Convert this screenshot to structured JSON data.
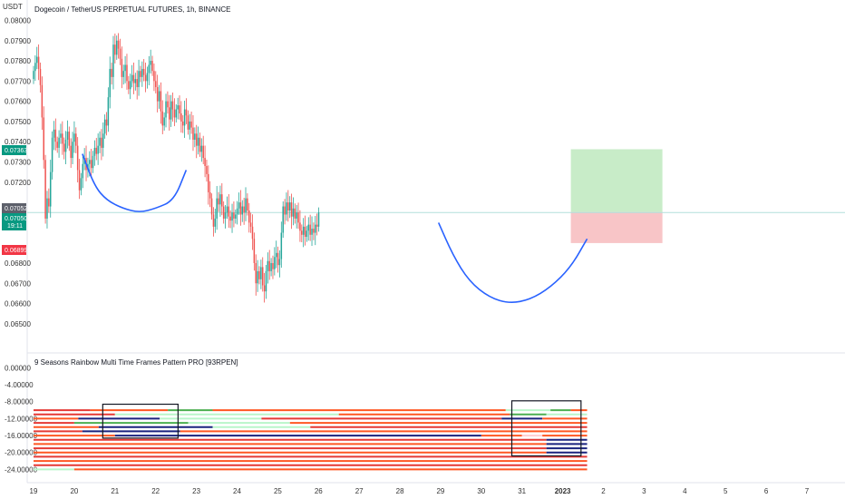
{
  "header": {
    "unit": "USDT",
    "title": "Dogecoin / TetherUS PERPETUAL FUTURES, 1h, BINANCE"
  },
  "indicator": {
    "title": "9 Seasons Rainbow Multi Time Frames Pattern PRO [93RPEN]"
  },
  "colors": {
    "bull": "#26a69a",
    "bear": "#ef5350",
    "curve": "#2962ff",
    "target_fill": "#c8ecc8",
    "stop_fill": "#f8c5c7",
    "price_tag": "#089981",
    "stop_tag": "#f23645",
    "entry_tag": "#5d606b",
    "box": "#131722",
    "rb_orange": "#ff5722",
    "rb_red": "#e53935",
    "rb_navy": "#1a237e",
    "rb_lightgreen": "#b9f6ca",
    "rb_teal": "#4caf50",
    "rb_pink": "#ffcdd2"
  },
  "price_tags": {
    "target": "0.07363",
    "entry": "0.07052",
    "current": "0.07050",
    "countdown": "19:11",
    "stop": "0.06899"
  },
  "chart_data": [
    {
      "type": "candlestick",
      "title": "Dogecoin / TetherUS PERPETUAL FUTURES, 1h, BINANCE",
      "ylabel": "USDT",
      "ylim": [
        0.0645,
        0.0802
      ],
      "y_ticks": [
        "0.06500",
        "0.06600",
        "0.06700",
        "0.06800",
        "0.07200",
        "0.07300",
        "0.07400",
        "0.07500",
        "0.07600",
        "0.07700",
        "0.07800",
        "0.07900",
        "0.08000"
      ],
      "x_ticks": [
        "19",
        "20",
        "21",
        "22",
        "23",
        "24",
        "25",
        "26",
        "27",
        "28",
        "29",
        "30",
        "31",
        "2023",
        "2",
        "3",
        "4",
        "5",
        "6",
        "7"
      ],
      "x_positions": [
        19,
        20,
        21,
        22,
        23,
        24,
        25,
        26,
        27,
        28,
        29,
        30,
        31,
        32,
        33,
        34,
        35,
        36,
        37,
        38
      ],
      "grid": false,
      "series": [
        {
          "kind": "candles_close",
          "x_start": 19.0,
          "x_step": 0.0417,
          "close": [
            0.0775,
            0.0779,
            0.0782,
            0.0776,
            0.0768,
            0.0752,
            0.0731,
            0.0702,
            0.0712,
            0.0708,
            0.0725,
            0.0742,
            0.0746,
            0.074,
            0.0737,
            0.0742,
            0.0744,
            0.0739,
            0.0735,
            0.0741,
            0.0745,
            0.0738,
            0.0732,
            0.074,
            0.0744,
            0.0738,
            0.0726,
            0.0716,
            0.0722,
            0.0729,
            0.0732,
            0.0726,
            0.0729,
            0.0731,
            0.0727,
            0.0733,
            0.0737,
            0.0734,
            0.0738,
            0.0742,
            0.0737,
            0.0744,
            0.0751,
            0.0748,
            0.0762,
            0.0776,
            0.0772,
            0.0788,
            0.0783,
            0.079,
            0.0786,
            0.0781,
            0.0772,
            0.0775,
            0.0778,
            0.077,
            0.0766,
            0.077,
            0.0773,
            0.0769,
            0.0771,
            0.0767,
            0.0775,
            0.0772,
            0.0776,
            0.0773,
            0.077,
            0.0774,
            0.0778,
            0.078,
            0.0775,
            0.077,
            0.0767,
            0.076,
            0.0765,
            0.0755,
            0.0748,
            0.0752,
            0.076,
            0.0757,
            0.0751,
            0.076,
            0.0756,
            0.0752,
            0.0756,
            0.0758,
            0.0754,
            0.075,
            0.0748,
            0.0756,
            0.0753,
            0.0746,
            0.075,
            0.0747,
            0.0741,
            0.0744,
            0.0738,
            0.0742,
            0.0735,
            0.0738,
            0.0732,
            0.0728,
            0.0724,
            0.0715,
            0.0712,
            0.0704,
            0.0698,
            0.0702,
            0.0712,
            0.0709,
            0.0714,
            0.0708,
            0.0702,
            0.0705,
            0.0708,
            0.0703,
            0.0701,
            0.0705,
            0.0702,
            0.0704,
            0.0707,
            0.071,
            0.0704,
            0.0708,
            0.0705,
            0.0712,
            0.0706,
            0.07,
            0.0698,
            0.0692,
            0.068,
            0.067,
            0.0676,
            0.0672,
            0.0678,
            0.0669,
            0.0666,
            0.0676,
            0.0681,
            0.0676,
            0.068,
            0.0677,
            0.0683,
            0.0685,
            0.0679,
            0.0682,
            0.0695,
            0.0708,
            0.0704,
            0.071,
            0.0706,
            0.071,
            0.0703,
            0.0707,
            0.0702,
            0.0705,
            0.07,
            0.0696,
            0.0694,
            0.0698,
            0.0693,
            0.0696,
            0.0699,
            0.0694,
            0.0697,
            0.0695,
            0.0699,
            0.0698,
            0.0705
          ]
        },
        {
          "name": "",
          "kind": "curve",
          "x": [
            20.2,
            20.5,
            20.8,
            21.2,
            21.6,
            22.0,
            22.45,
            22.75
          ],
          "y": [
            0.0734,
            0.0718,
            0.0711,
            0.0707,
            0.0705,
            0.0707,
            0.0711,
            0.0726
          ]
        },
        {
          "name": "",
          "kind": "curve",
          "x": [
            28.95,
            29.3,
            29.7,
            30.2,
            30.7,
            31.2,
            31.7,
            32.2,
            32.6
          ],
          "y": [
            0.07,
            0.0684,
            0.0671,
            0.0663,
            0.066,
            0.0662,
            0.0668,
            0.0678,
            0.0692
          ]
        }
      ],
      "position_tool": {
        "x_range": [
          32.2,
          34.45
        ],
        "entry": 0.07052,
        "target": 0.07363,
        "stop": 0.06899
      },
      "reference_line": 0.0705
    },
    {
      "type": "heatmap",
      "title": "9 Seasons Rainbow Multi Time Frames Pattern PRO [93RPEN]",
      "ylim": [
        -25.2,
        0.3
      ],
      "y_ticks": [
        "0.00000",
        "-4.00000",
        "-8.00000",
        "-12.00000",
        "-16.00000",
        "-20.00000",
        "-24.00000"
      ],
      "y_tick_values": [
        0,
        -4,
        -8,
        -12,
        -16,
        -20,
        -24
      ],
      "rows": [
        {
          "y": -10,
          "segments": [
            {
              "x0": 19.0,
              "x1": 20.4,
              "color": "rb_red"
            },
            {
              "x0": 20.4,
              "x1": 22.3,
              "color": "rb_orange"
            },
            {
              "x0": 22.3,
              "x1": 23.4,
              "color": "rb_teal"
            },
            {
              "x0": 23.4,
              "x1": 30.6,
              "color": "rb_orange"
            },
            {
              "x0": 30.6,
              "x1": 31.7,
              "color": "rb_lightgreen"
            },
            {
              "x0": 31.7,
              "x1": 32.2,
              "color": "rb_teal"
            },
            {
              "x0": 32.2,
              "x1": 32.6,
              "color": "rb_orange"
            }
          ]
        },
        {
          "y": -11,
          "segments": [
            {
              "x0": 19.0,
              "x1": 21.0,
              "color": "rb_red"
            },
            {
              "x0": 21.0,
              "x1": 22.5,
              "color": "rb_lightgreen"
            },
            {
              "x0": 22.5,
              "x1": 26.5,
              "color": "rb_lightgreen"
            },
            {
              "x0": 26.5,
              "x1": 30.7,
              "color": "rb_orange"
            },
            {
              "x0": 30.7,
              "x1": 31.6,
              "color": "rb_teal"
            },
            {
              "x0": 31.6,
              "x1": 32.6,
              "color": "rb_lightgreen"
            }
          ]
        },
        {
          "y": -12,
          "segments": [
            {
              "x0": 19.0,
              "x1": 20.1,
              "color": "rb_orange"
            },
            {
              "x0": 20.1,
              "x1": 22.1,
              "color": "rb_navy"
            },
            {
              "x0": 22.1,
              "x1": 24.6,
              "color": "rb_lightgreen"
            },
            {
              "x0": 24.6,
              "x1": 30.5,
              "color": "rb_red"
            },
            {
              "x0": 30.5,
              "x1": 31.5,
              "color": "rb_navy"
            },
            {
              "x0": 31.5,
              "x1": 32.6,
              "color": "rb_orange"
            }
          ]
        },
        {
          "y": -13,
          "segments": [
            {
              "x0": 19.0,
              "x1": 20.0,
              "color": "rb_red"
            },
            {
              "x0": 20.0,
              "x1": 22.8,
              "color": "rb_teal"
            },
            {
              "x0": 22.8,
              "x1": 25.3,
              "color": "rb_lightgreen"
            },
            {
              "x0": 25.3,
              "x1": 32.6,
              "color": "rb_orange"
            }
          ]
        },
        {
          "y": -14,
          "segments": [
            {
              "x0": 19.0,
              "x1": 20.6,
              "color": "rb_orange"
            },
            {
              "x0": 20.6,
              "x1": 23.4,
              "color": "rb_navy"
            },
            {
              "x0": 23.4,
              "x1": 25.8,
              "color": "rb_lightgreen"
            },
            {
              "x0": 25.8,
              "x1": 32.6,
              "color": "rb_red"
            }
          ]
        },
        {
          "y": -15,
          "segments": [
            {
              "x0": 19.0,
              "x1": 20.2,
              "color": "rb_red"
            },
            {
              "x0": 20.2,
              "x1": 22.6,
              "color": "rb_navy"
            },
            {
              "x0": 22.6,
              "x1": 32.6,
              "color": "rb_orange"
            }
          ]
        },
        {
          "y": -16,
          "segments": [
            {
              "x0": 19.0,
              "x1": 21.0,
              "color": "rb_orange"
            },
            {
              "x0": 21.0,
              "x1": 30.0,
              "color": "rb_navy"
            },
            {
              "x0": 30.0,
              "x1": 31.0,
              "color": "rb_orange"
            },
            {
              "x0": 31.0,
              "x1": 31.5,
              "color": "rb_pink"
            },
            {
              "x0": 31.5,
              "x1": 32.6,
              "color": "rb_orange"
            }
          ]
        },
        {
          "y": -17,
          "segments": [
            {
              "x0": 19.0,
              "x1": 31.6,
              "color": "rb_red"
            },
            {
              "x0": 31.6,
              "x1": 32.6,
              "color": "rb_navy"
            }
          ]
        },
        {
          "y": -18,
          "segments": [
            {
              "x0": 19.0,
              "x1": 31.6,
              "color": "rb_orange"
            },
            {
              "x0": 31.6,
              "x1": 32.6,
              "color": "rb_navy"
            }
          ]
        },
        {
          "y": -19,
          "segments": [
            {
              "x0": 19.0,
              "x1": 31.6,
              "color": "rb_red"
            },
            {
              "x0": 31.6,
              "x1": 32.6,
              "color": "rb_navy"
            }
          ]
        },
        {
          "y": -20,
          "segments": [
            {
              "x0": 19.0,
              "x1": 31.6,
              "color": "rb_orange"
            },
            {
              "x0": 31.6,
              "x1": 32.6,
              "color": "rb_navy"
            }
          ]
        },
        {
          "y": -21,
          "segments": [
            {
              "x0": 19.0,
              "x1": 32.6,
              "color": "rb_red"
            }
          ]
        },
        {
          "y": -22,
          "segments": [
            {
              "x0": 19.0,
              "x1": 32.6,
              "color": "rb_orange"
            }
          ]
        },
        {
          "y": -23,
          "segments": [
            {
              "x0": 19.0,
              "x1": 32.6,
              "color": "rb_red"
            }
          ]
        },
        {
          "y": -24,
          "segments": [
            {
              "x0": 19.0,
              "x1": 20.0,
              "color": "rb_lightgreen"
            },
            {
              "x0": 20.0,
              "x1": 32.6,
              "color": "rb_orange"
            }
          ]
        }
      ],
      "highlight_boxes": [
        {
          "x0": 20.7,
          "x1": 22.55,
          "y0": -8.6,
          "y1": -16.6
        },
        {
          "x0": 30.75,
          "x1": 32.45,
          "y0": -7.8,
          "y1": -20.8
        }
      ]
    }
  ]
}
